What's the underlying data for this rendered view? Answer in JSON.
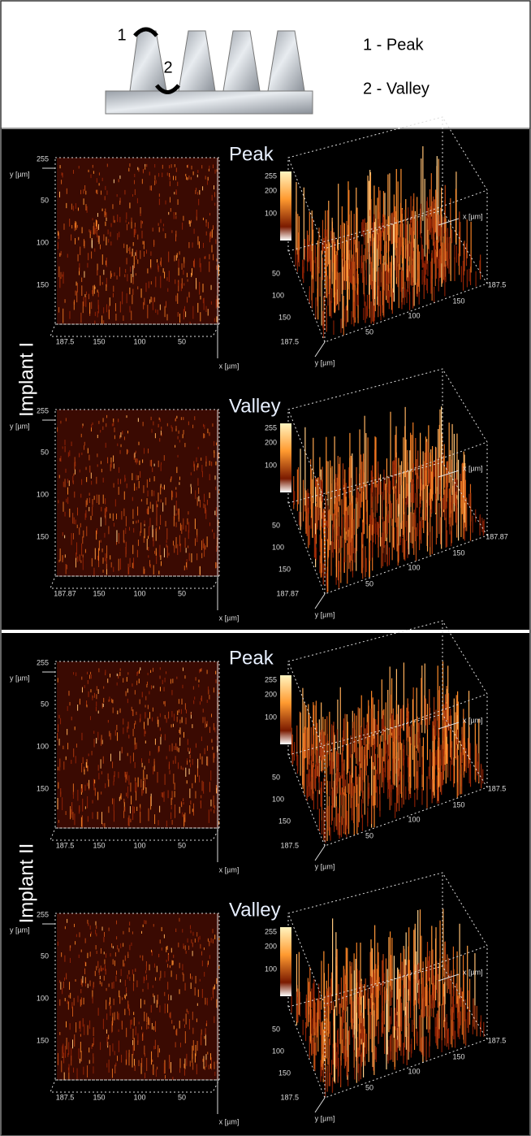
{
  "legend": {
    "mark1": "1",
    "mark2": "2",
    "items": [
      "1 - Peak",
      "2 - Valley"
    ]
  },
  "panels": [
    {
      "label": "Implant I",
      "rows": [
        {
          "label": "Peak",
          "left": {
            "y_label": "y [µm]",
            "x_label": "x [µm]",
            "y_ticks": [
              "255",
              "50",
              "100",
              "150"
            ],
            "x_ticks": [
              "187.5",
              "150",
              "100",
              "50"
            ]
          },
          "right": {
            "x_label": "x [µm]",
            "y_label": "y [µm]",
            "z_ticks": [
              "255",
              "200",
              "100"
            ],
            "y_ticks": [
              "50",
              "100",
              "150",
              "187.5"
            ],
            "x_ticks": [
              "50",
              "100",
              "150",
              "187.5"
            ]
          }
        },
        {
          "label": "Valley",
          "left": {
            "y_label": "y [µm]",
            "x_label": "x [µm]",
            "y_ticks": [
              "255",
              "50",
              "100",
              "150"
            ],
            "x_ticks": [
              "187.87",
              "150",
              "100",
              "50"
            ]
          },
          "right": {
            "x_label": "x [µm]",
            "y_label": "y [µm]",
            "z_ticks": [
              "255",
              "200",
              "100"
            ],
            "y_ticks": [
              "50",
              "100",
              "150",
              "187.87"
            ],
            "x_ticks": [
              "50",
              "100",
              "150",
              "187.87"
            ]
          }
        }
      ]
    },
    {
      "label": "Implant II",
      "rows": [
        {
          "label": "Peak",
          "left": {
            "y_label": "y [µm]",
            "x_label": "x [µm]",
            "y_ticks": [
              "255",
              "50",
              "100",
              "150"
            ],
            "x_ticks": [
              "187.5",
              "150",
              "100",
              "50"
            ]
          },
          "right": {
            "x_label": "x [µm]",
            "y_label": "y [µm]",
            "z_ticks": [
              "255",
              "200",
              "100"
            ],
            "y_ticks": [
              "50",
              "100",
              "150",
              "187.5"
            ],
            "x_ticks": [
              "50",
              "100",
              "150",
              "187.5"
            ]
          }
        },
        {
          "label": "Valley",
          "left": {
            "y_label": "y [µm]",
            "x_label": "x [µm]",
            "y_ticks": [
              "255",
              "50",
              "100",
              "150"
            ],
            "x_ticks": [
              "187.5",
              "150",
              "100",
              "50"
            ]
          },
          "right": {
            "x_label": "x [µm]",
            "y_label": "y [µm]",
            "z_ticks": [
              "255",
              "200",
              "100"
            ],
            "y_ticks": [
              "50",
              "100",
              "150",
              "187.5"
            ],
            "x_ticks": [
              "50",
              "100",
              "150",
              "187.5"
            ]
          }
        }
      ]
    }
  ]
}
